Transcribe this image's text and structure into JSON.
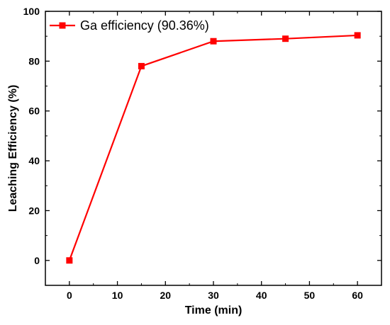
{
  "chart_data": {
    "type": "line",
    "title": "",
    "xlabel": "Time (min)",
    "ylabel": "Leaching Efficiency (%)",
    "xlim": [
      -5,
      65
    ],
    "ylim": [
      -10,
      100
    ],
    "xticks": [
      0,
      10,
      20,
      30,
      40,
      50,
      60
    ],
    "yticks": [
      0,
      20,
      40,
      60,
      80,
      100
    ],
    "xtick_labels": [
      "0",
      "10",
      "20",
      "30",
      "40",
      "50",
      "60"
    ],
    "ytick_labels": [
      "0",
      "20",
      "40",
      "60",
      "80",
      "100"
    ],
    "grid": false,
    "legend_position": "top-left",
    "series": [
      {
        "name": "Ga efficiency (90.36%)",
        "color": "#ff0000",
        "marker": "square",
        "x": [
          0,
          15,
          30,
          45,
          60
        ],
        "y": [
          0,
          78,
          88,
          89,
          90.36
        ]
      }
    ]
  }
}
